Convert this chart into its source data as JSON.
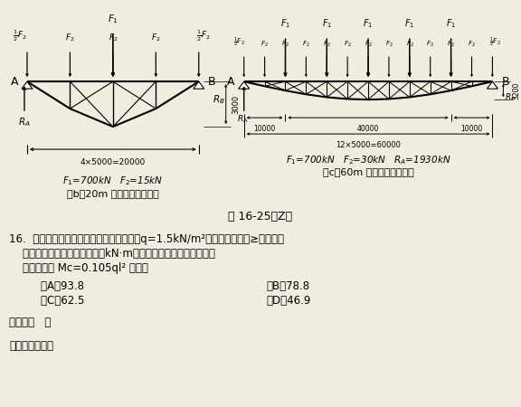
{
  "background_color": "#f0ece0",
  "fig_width": 5.76,
  "fig_height": 4.5,
  "dpi": 100,
  "title": "图 16-25（Z）",
  "b_formula": "$F_1$=700kN   $F_2$=15kN",
  "c_formula": "$F_1$=700kN   $F_2$=30kN   $R_A$=1930kN",
  "diagram_b_label": "（b）20m 跨度托架计算简图",
  "diagram_c_label": "（c）60m 跨度托架计算简图",
  "q16_line1": "16.  屋面均布荷载设计值（包括檩条自重）q=1.5kN/m²。试问，多跨（≥五跨）连",
  "q16_line2": "    续檩条支座最大弯矩设计值（kN·m）与下列何项数值最为接近？",
  "q16_line3": "    提示：可按 Mc=0.105ql² 计算。",
  "optA": "    （A）93.8",
  "optB": "（B）78.8",
  "optC": "    （C）62.5",
  "optD": "（D）46.9",
  "ans": "答案：（   ）",
  "main": "主要作答过程："
}
